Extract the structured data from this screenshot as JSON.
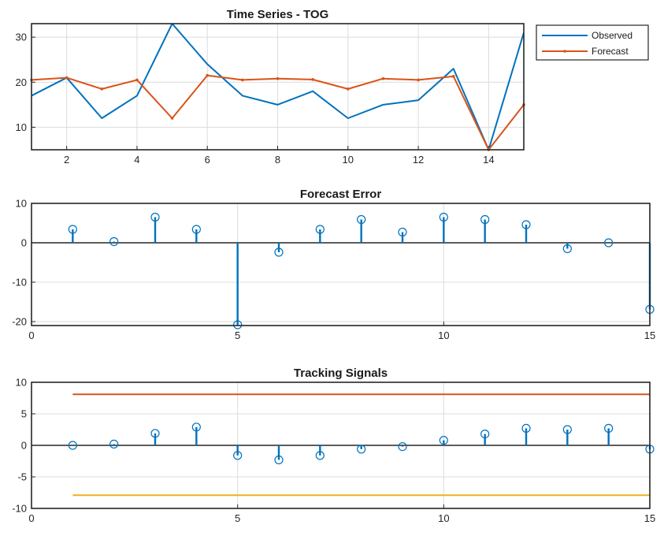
{
  "colors": {
    "observed": "#0072BD",
    "forecast": "#D95319",
    "upper_limit": "#D95319",
    "lower_limit": "#EDB120",
    "stem": "#0072BD",
    "baseline": "#262626"
  },
  "chart_data": [
    {
      "type": "line",
      "title": "Time Series - TOG",
      "xlim": [
        1,
        15
      ],
      "ylim": [
        5,
        33
      ],
      "xticks": [
        2,
        4,
        6,
        8,
        10,
        12,
        14
      ],
      "yticks": [
        10,
        20,
        30
      ],
      "grid": true,
      "legend": {
        "placement": "outside-top-right",
        "entries": [
          "Observed",
          "Forecast"
        ]
      },
      "x": [
        1,
        2,
        3,
        4,
        5,
        6,
        7,
        8,
        9,
        10,
        11,
        12,
        13,
        14,
        15
      ],
      "series": [
        {
          "name": "Observed",
          "values": [
            17,
            21,
            12,
            17,
            33,
            24,
            17,
            15,
            18,
            12,
            15,
            16,
            23,
            5,
            31
          ]
        },
        {
          "name": "Forecast",
          "values": [
            20.5,
            21,
            18.5,
            20.5,
            12,
            21.5,
            20.5,
            20.8,
            20.6,
            18.5,
            20.8,
            20.5,
            21.3,
            5,
            15
          ]
        }
      ]
    },
    {
      "type": "stem",
      "title": "Forecast Error",
      "xlim": [
        0,
        15
      ],
      "ylim": [
        -21,
        10
      ],
      "xticks": [
        0,
        5,
        10,
        15
      ],
      "yticks": [
        10,
        0,
        -10,
        -20
      ],
      "grid": true,
      "x": [
        1,
        2,
        3,
        4,
        5,
        6,
        7,
        8,
        9,
        10,
        11,
        12,
        13,
        14,
        15
      ],
      "values": [
        3.4,
        0.3,
        6.5,
        3.4,
        -20.8,
        -2.4,
        3.4,
        5.9,
        2.7,
        6.5,
        5.9,
        4.6,
        -1.5,
        0,
        -16.9
      ]
    },
    {
      "type": "stem",
      "title": "Tracking Signals",
      "xlim": [
        0,
        15
      ],
      "ylim": [
        -10,
        10
      ],
      "xticks": [
        0,
        5,
        10,
        15
      ],
      "yticks": [
        10,
        5,
        0,
        -5,
        -10
      ],
      "grid": true,
      "x": [
        1,
        2,
        3,
        4,
        5,
        6,
        7,
        8,
        9,
        10,
        11,
        12,
        13,
        14,
        15
      ],
      "values": [
        0,
        0.2,
        1.9,
        2.9,
        -1.6,
        -2.3,
        -1.6,
        -0.6,
        -0.2,
        0.8,
        1.8,
        2.7,
        2.5,
        2.7,
        -0.6
      ],
      "limits": [
        {
          "name": "upper",
          "value": 8.1,
          "x_range": [
            1,
            15
          ]
        },
        {
          "name": "lower",
          "value": -7.9,
          "x_range": [
            1,
            15
          ]
        }
      ]
    }
  ]
}
